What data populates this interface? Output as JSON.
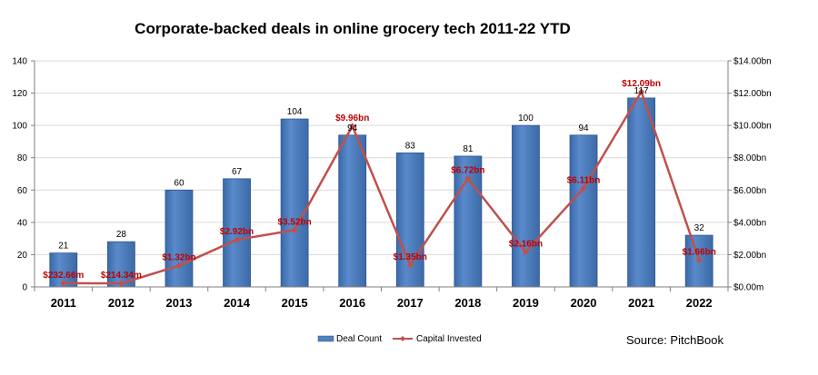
{
  "chart_data": {
    "type": "bar",
    "title": "Corporate-backed deals in online grocery tech 2011-22 YTD",
    "categories": [
      "2011",
      "2012",
      "2013",
      "2014",
      "2015",
      "2016",
      "2017",
      "2018",
      "2019",
      "2020",
      "2021",
      "2022"
    ],
    "series": [
      {
        "name": "Deal Count",
        "type": "bar",
        "axis": "left",
        "values": [
          21,
          28,
          60,
          67,
          104,
          94,
          83,
          81,
          100,
          94,
          117,
          32
        ],
        "labels": [
          "21",
          "28",
          "60",
          "67",
          "104",
          "94",
          "83",
          "81",
          "100",
          "94",
          "117",
          "32"
        ]
      },
      {
        "name": "Capital Invested",
        "type": "line",
        "axis": "right",
        "values": [
          0.23266,
          0.21434,
          1.32,
          2.92,
          3.52,
          9.96,
          1.35,
          6.72,
          2.16,
          6.11,
          12.09,
          1.66
        ],
        "labels": [
          "$232.66m",
          "$214.34m",
          "$1.32bn",
          "$2.92bn",
          "$3.52bn",
          "$9.96bn",
          "$1.35bn",
          "$6.72bn",
          "$2.16bn",
          "$6.11bn",
          "$12.09bn",
          "$1.66bn"
        ]
      }
    ],
    "y_left": {
      "ylim": [
        0,
        140
      ],
      "ticks": [
        "0",
        "20",
        "40",
        "60",
        "80",
        "100",
        "120",
        "140"
      ]
    },
    "y_right": {
      "ylim": [
        0,
        14
      ],
      "ticks": [
        "$0.00m",
        "$2.00bn",
        "$4.00bn",
        "$6.00bn",
        "$8.00bn",
        "$10.00bn",
        "$12.00bn",
        "$14.00bn"
      ]
    },
    "grid": true,
    "legend_position": "bottom",
    "colors": {
      "bar": "#4f81bd",
      "bar_dark": "#2f5597",
      "line": "#c0504d",
      "line_label": "#c00000",
      "grid": "#d9d9d9"
    }
  },
  "source_note": "Source: PitchBook"
}
